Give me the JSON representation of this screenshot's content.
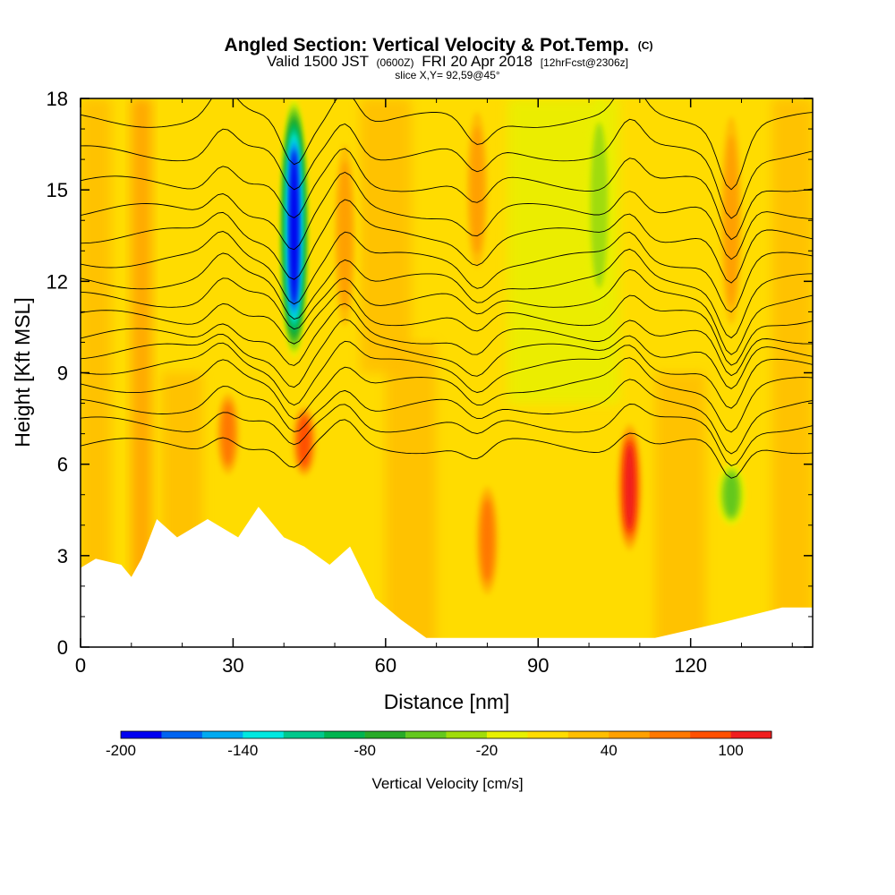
{
  "chart_data": {
    "type": "heatmap",
    "title": {
      "main": "Angled Section: Vertical Velocity & Pot.Temp.",
      "main_unit": "(C)",
      "valid_prefix": "Valid 1500 JST",
      "valid_utc": "(0600Z)",
      "valid_date": "FRI 20 Apr 2018",
      "forecast": "[12hrFcst@2306z]",
      "slice": "slice X,Y= 92,59@45°"
    },
    "xlabel": "Distance [nm]",
    "ylabel": "Height [Kft MSL]",
    "xlim": [
      0,
      144
    ],
    "ylim": [
      0,
      18
    ],
    "x_ticks": [
      0,
      30,
      60,
      90,
      120
    ],
    "x_tick_labels": [
      "0",
      "30",
      "60",
      "90",
      "120"
    ],
    "y_ticks": [
      0,
      3,
      6,
      9,
      12,
      15,
      18
    ],
    "y_tick_labels": [
      "0",
      "3",
      "6",
      "9",
      "12",
      "15",
      "18"
    ],
    "colorbar": {
      "label": "Vertical Velocity [cm/s]",
      "range": [
        -200,
        120
      ],
      "step": 20,
      "tick_values": [
        -200,
        -140,
        -80,
        -20,
        40,
        100
      ],
      "tick_labels": [
        "-200",
        "-140",
        "-80",
        "-20",
        "40",
        "100"
      ],
      "colors": [
        "#0000f0",
        "#0064f0",
        "#00aaf0",
        "#00e8e0",
        "#00c88c",
        "#00b450",
        "#28aa28",
        "#64c81e",
        "#a0dc0a",
        "#e8f000",
        "#ffdc00",
        "#ffbe00",
        "#ffa000",
        "#ff7800",
        "#ff5000",
        "#f01e1e",
        "#b41450",
        "#8c0a78",
        "#5a007d"
      ]
    },
    "velocity_features": [
      {
        "x": 42,
        "z_bottom": 9.5,
        "z_top": 18,
        "w_min": -200,
        "kind": "downdraft"
      },
      {
        "x": 108,
        "z_bottom": 3.0,
        "z_top": 7.5,
        "w_max": 120,
        "kind": "updraft"
      },
      {
        "x": 44,
        "z_bottom": 5.5,
        "z_top": 8.0,
        "w_max": 100,
        "kind": "updraft"
      },
      {
        "x": 80,
        "z_bottom": 1.5,
        "z_top": 5.5,
        "w_max": 80,
        "kind": "updraft"
      },
      {
        "x": 29,
        "z_bottom": 5.5,
        "z_top": 8.5,
        "w_max": 80,
        "kind": "updraft"
      },
      {
        "x": 52,
        "z_bottom": 10,
        "z_top": 17,
        "w_max": 60,
        "kind": "updraft"
      },
      {
        "x": 78,
        "z_bottom": 12,
        "z_top": 18,
        "w_max": 60,
        "kind": "updraft"
      },
      {
        "x": 128,
        "z_bottom": 10,
        "z_top": 18,
        "w_max": 60,
        "kind": "updraft"
      },
      {
        "x": 102,
        "z_bottom": 11,
        "z_top": 18,
        "w_min": -40,
        "kind": "downdraft"
      },
      {
        "x": 128,
        "z_bottom": 4,
        "z_top": 6,
        "w_min": -60,
        "kind": "downdraft"
      }
    ],
    "theta_contour_heights_kft": [
      6.6,
      7.3,
      7.9,
      8.6,
      9.2,
      9.7,
      10.2,
      10.8,
      11.4,
      12.0,
      12.7,
      13.5,
      14.3,
      15.2,
      16.2,
      17.3
    ],
    "terrain_kft": [
      [
        0,
        2.6
      ],
      [
        3,
        2.9
      ],
      [
        8,
        2.7
      ],
      [
        10,
        2.3
      ],
      [
        12,
        2.9
      ],
      [
        15,
        4.2
      ],
      [
        19,
        3.6
      ],
      [
        25,
        4.2
      ],
      [
        31,
        3.6
      ],
      [
        35,
        4.6
      ],
      [
        40,
        3.6
      ],
      [
        44,
        3.3
      ],
      [
        49,
        2.7
      ],
      [
        53,
        3.3
      ],
      [
        58,
        1.6
      ],
      [
        63,
        0.9
      ],
      [
        68,
        0.3
      ],
      [
        80,
        0.3
      ],
      [
        113,
        0.3
      ],
      [
        126,
        0.8
      ],
      [
        138,
        1.3
      ],
      [
        144,
        1.3
      ]
    ]
  }
}
